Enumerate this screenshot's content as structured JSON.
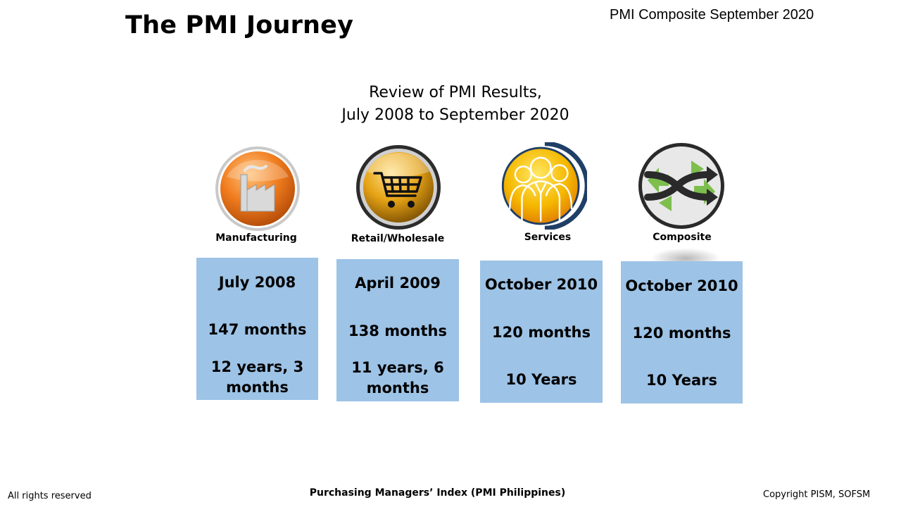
{
  "header": {
    "title": "The PMI Journey",
    "corner": "PMI Composite September 2020"
  },
  "subtitle": {
    "line1": "Review of PMI Results,",
    "line2": "July 2008 to September 2020"
  },
  "categories": [
    {
      "label": "Manufacturing",
      "icon": "factory-icon",
      "start": "July 2008",
      "months": "147 months",
      "duration_l1": "12 years, 3",
      "duration_l2": "months"
    },
    {
      "label": "Retail/Wholesale",
      "icon": "shopping-cart-icon",
      "start": "April 2009",
      "months": "138 months",
      "duration_l1": "11 years, 6",
      "duration_l2": "months"
    },
    {
      "label": "Services",
      "icon": "people-icon",
      "start": "October 2010",
      "months": "120 months",
      "duration": "10 Years"
    },
    {
      "label": "Composite",
      "icon": "exchange-arrows-icon",
      "start": "October 2010",
      "months": "120 months",
      "duration": "10 Years"
    }
  ],
  "colors": {
    "card_fill": "#9DC3E6",
    "manufacturing_orange": "#F07C1E",
    "retail_gold": "#C8860A",
    "services_yellow": "#F5B800",
    "composite_green": "#7DBE4E",
    "ring_blue": "#1F3F66"
  },
  "footer": {
    "left": "All rights reserved",
    "center": "Purchasing Managers’ Index (PMI Philippines)",
    "right": "Copyright PISM, SOFSM"
  }
}
